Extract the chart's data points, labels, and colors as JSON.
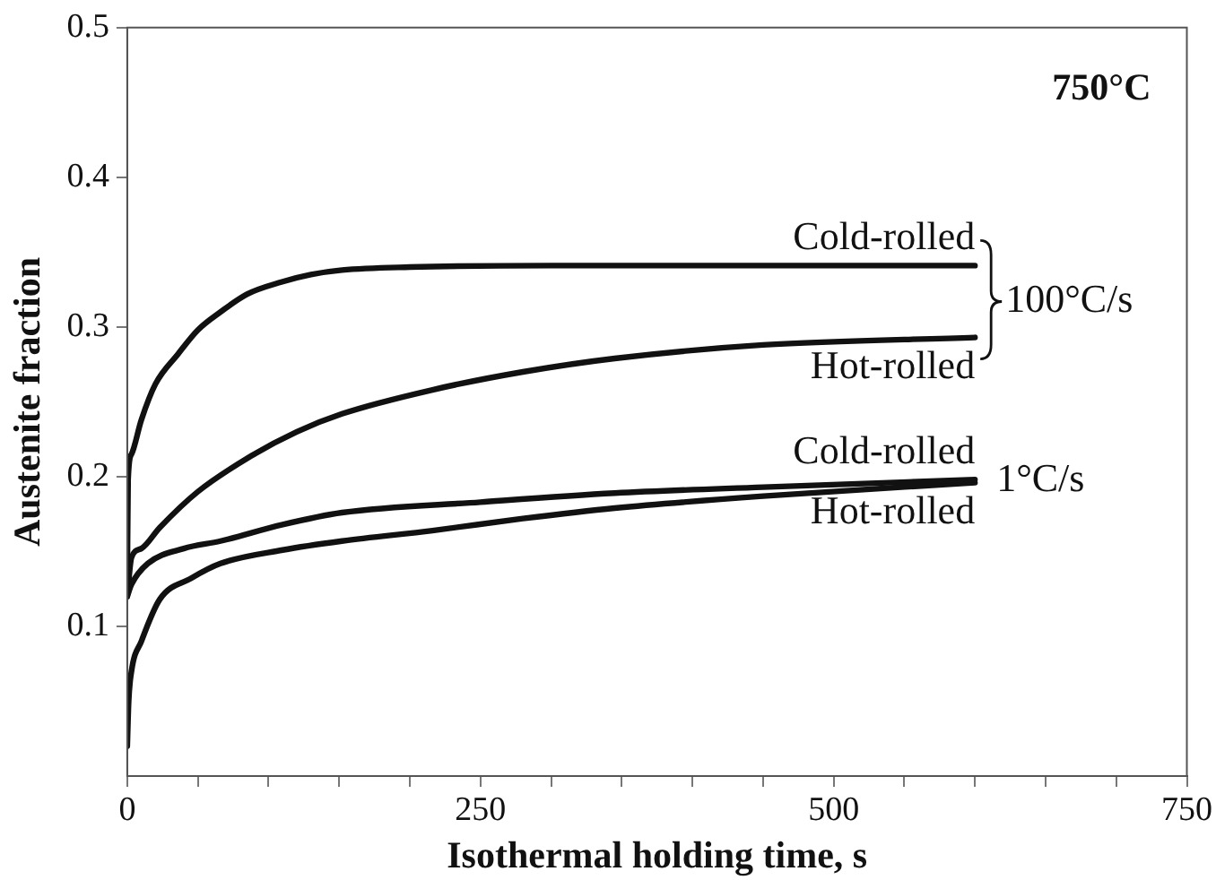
{
  "chart_data": {
    "type": "line",
    "xlabel": "Isothermal holding time, s",
    "ylabel": "Austenite fraction",
    "xlim": [
      0,
      750
    ],
    "ylim": [
      0,
      0.5
    ],
    "xticks": [
      0,
      {
        "value": 50,
        "label": null
      },
      {
        "value": 100,
        "label": null
      },
      {
        "value": 150,
        "label": null
      },
      {
        "value": 200,
        "label": null
      },
      250,
      {
        "value": 300,
        "label": null
      },
      {
        "value": 350,
        "label": null
      },
      {
        "value": 400,
        "label": null
      },
      {
        "value": 450,
        "label": null
      },
      500,
      {
        "value": 550,
        "label": null
      },
      {
        "value": 600,
        "label": null
      },
      {
        "value": 650,
        "label": null
      },
      {
        "value": 700,
        "label": null
      },
      750
    ],
    "yticks": [
      0.1,
      0.2,
      0.3,
      0.4,
      0.5
    ],
    "grid": false,
    "legend": false,
    "marker": "none",
    "line_style": "solid",
    "series": [
      {
        "name": "Cold-rolled",
        "color": "#111111",
        "x": [
          0,
          0.6,
          3,
          10,
          20,
          36,
          50,
          66,
          85,
          109,
          130,
          152,
          200,
          300,
          400,
          500,
          600
        ],
        "values": [
          0.13,
          0.198,
          0.215,
          0.238,
          0.262,
          0.282,
          0.298,
          0.31,
          0.322,
          0.33,
          0.335,
          0.338,
          0.34,
          0.341,
          0.341,
          0.341,
          0.341
        ]
      },
      {
        "name": "Hot-rolled",
        "color": "#111111",
        "x": [
          0,
          3,
          10,
          23,
          50,
          88,
          120,
          152,
          216,
          280,
          345,
          450,
          600
        ],
        "values": [
          0.12,
          0.146,
          0.152,
          0.166,
          0.19,
          0.214,
          0.23,
          0.242,
          0.258,
          0.27,
          0.279,
          0.288,
          0.293
        ]
      },
      {
        "name": "Cold-rolled",
        "color": "#111111",
        "x": [
          0,
          3,
          14.6,
          40,
          66,
          110,
          152,
          250,
          345,
          450,
          600
        ],
        "values": [
          0.12,
          0.128,
          0.142,
          0.152,
          0.157,
          0.168,
          0.176,
          0.183,
          0.189,
          0.193,
          0.198
        ]
      },
      {
        "name": "Hot-rolled",
        "color": "#111111",
        "x": [
          0,
          1,
          3,
          10,
          23,
          45,
          66,
          110,
          152,
          216,
          280,
          345,
          450,
          600
        ],
        "values": [
          0.02,
          0.05,
          0.07,
          0.09,
          0.118,
          0.132,
          0.142,
          0.151,
          0.157,
          0.164,
          0.172,
          0.179,
          0.187,
          0.196
        ]
      }
    ],
    "annotations": [
      "750°C",
      "100°C/s",
      "1°C/s"
    ]
  }
}
